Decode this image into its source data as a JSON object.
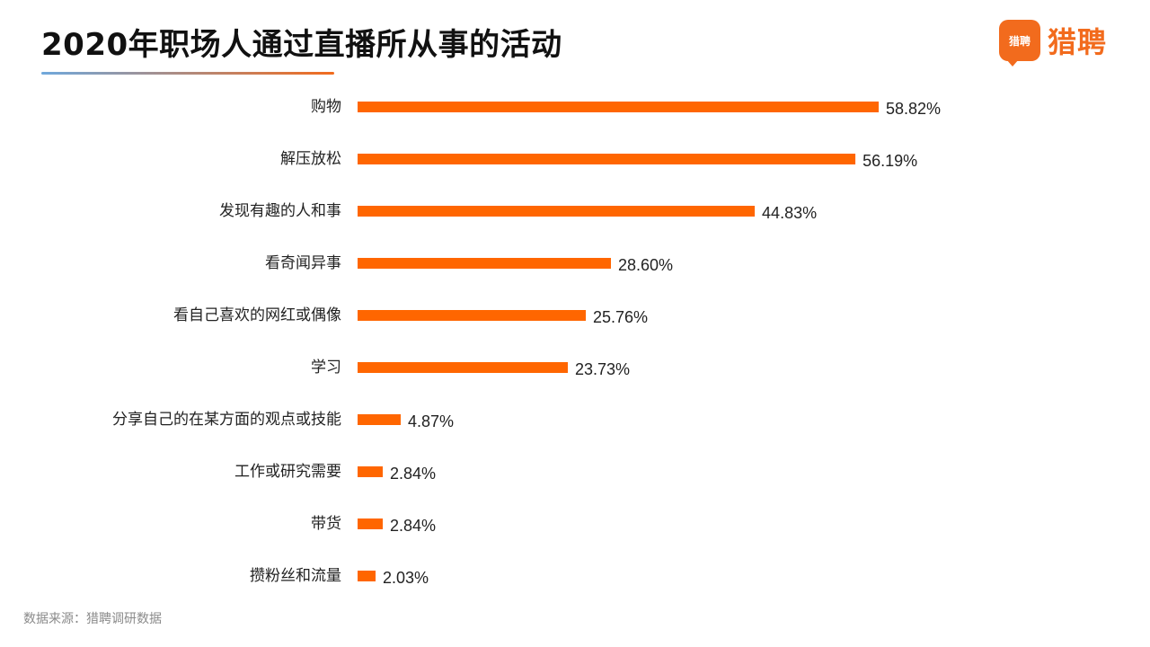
{
  "header": {
    "title": "2020年职场人通过直播所从事的活动",
    "logo_badge_text": "猎聘",
    "logo_text": "猎聘"
  },
  "footer": {
    "source": "数据来源：猎聘调研数据"
  },
  "colors": {
    "bar": "#ff6600",
    "brand": "#f26b1d",
    "underline_start": "#6fa8dc",
    "underline_end": "#f26b1d"
  },
  "chart_data": {
    "type": "bar",
    "orientation": "horizontal",
    "categories": [
      "购物",
      "解压放松",
      "发现有趣的人和事",
      "看奇闻异事",
      "看自己喜欢的网红或偶像",
      "学习",
      "分享自己的在某方面的观点或技能",
      "工作或研究需要",
      "带货",
      "攒粉丝和流量"
    ],
    "values": [
      58.82,
      56.19,
      44.83,
      28.6,
      25.76,
      23.73,
      4.87,
      2.84,
      2.84,
      2.03
    ],
    "value_labels": [
      "58.82%",
      "56.19%",
      "44.83%",
      "28.60%",
      "25.76%",
      "23.73%",
      "4.87%",
      "2.84%",
      "2.84%",
      "2.03%"
    ],
    "xlim": [
      0,
      60
    ],
    "grid": false,
    "legend": "none"
  }
}
